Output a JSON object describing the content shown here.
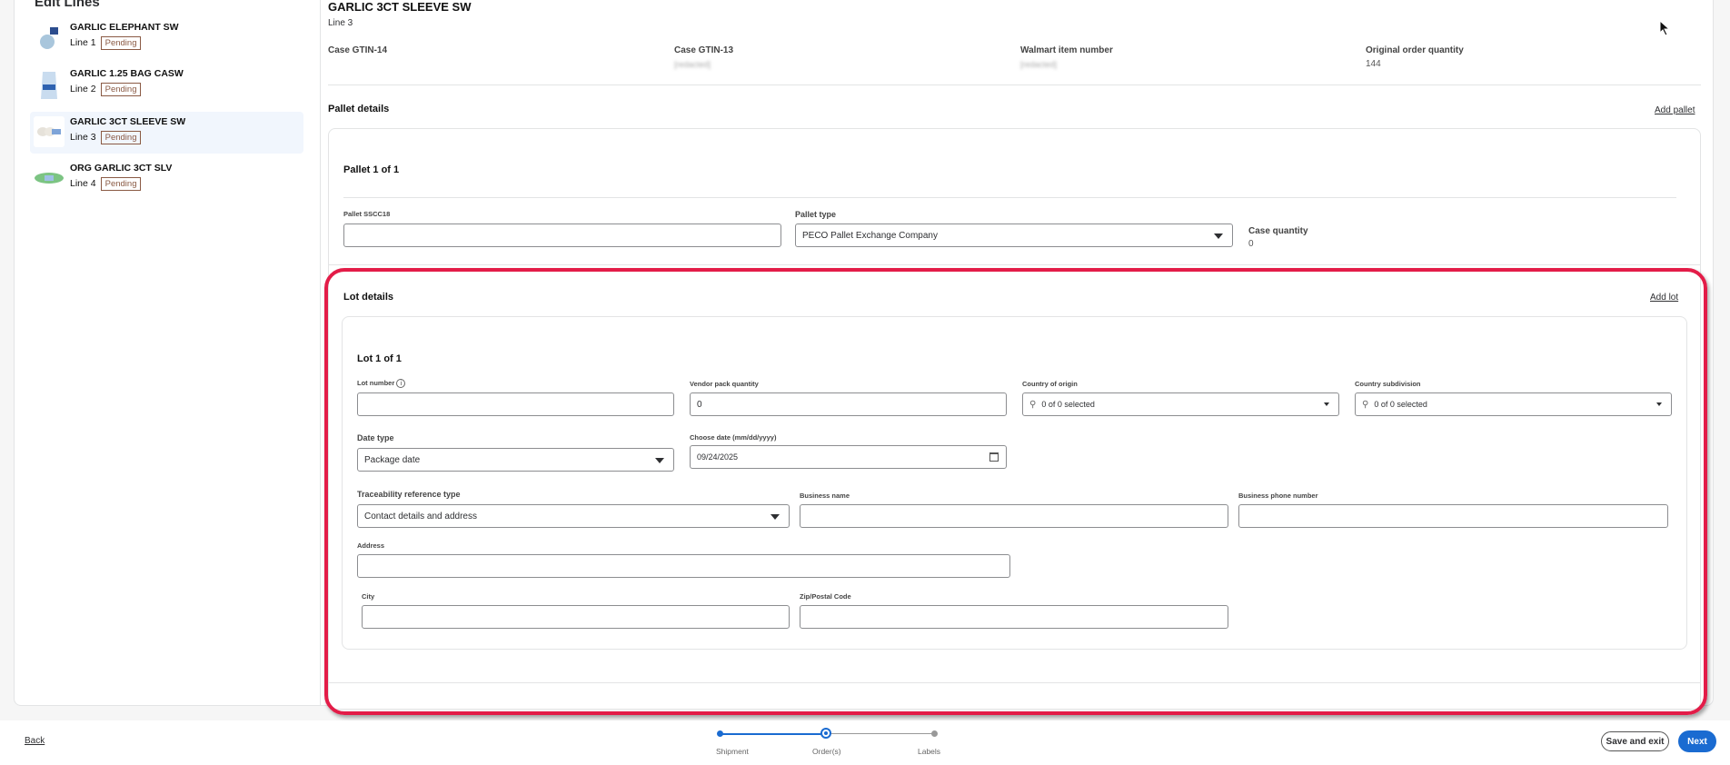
{
  "sidebar": {
    "title": "Edit Lines",
    "items": [
      {
        "name": "GARLIC ELEPHANT SW",
        "line": "Line 1",
        "status": "Pending"
      },
      {
        "name": "GARLIC 1.25 BAG CASW",
        "line": "Line 2",
        "status": "Pending"
      },
      {
        "name": "GARLIC 3CT SLEEVE SW",
        "line": "Line 3",
        "status": "Pending",
        "selected": true
      },
      {
        "name": "ORG GARLIC 3CT SLV",
        "line": "Line 4",
        "status": "Pending"
      }
    ]
  },
  "item": {
    "title": "GARLIC 3CT SLEEVE SW",
    "line": "Line 3",
    "fields": [
      {
        "label": "Case GTIN-14",
        "value": ""
      },
      {
        "label": "Case GTIN-13",
        "value": "[redacted]"
      },
      {
        "label": "Walmart item number",
        "value": "[redacted]"
      },
      {
        "label": "Original order quantity",
        "value": "144"
      }
    ]
  },
  "pallet": {
    "section_title": "Pallet details",
    "add_label": "Add pallet",
    "card_title": "Pallet 1 of 1",
    "sscc_label": "Pallet SSCC18",
    "sscc_value": "",
    "type_label": "Pallet type",
    "type_value": "PECO Pallet Exchange Company",
    "case_qty_label": "Case quantity",
    "case_qty_value": "0"
  },
  "lot": {
    "section_title": "Lot details",
    "add_label": "Add lot",
    "card_title": "Lot 1 of 1",
    "lot_number_label": "Lot number",
    "lot_number_value": "",
    "vendor_pack_label": "Vendor pack quantity",
    "vendor_pack_value": "0",
    "country_origin_label": "Country of origin",
    "country_origin_value": "0 of 0 selected",
    "country_subdivision_label": "Country subdivision",
    "country_subdivision_value": "0 of 0 selected",
    "date_type_label": "Date type",
    "date_type_value": "Package date",
    "choose_date_label": "Choose date (mm/dd/yyyy)",
    "choose_date_value": "09/24/2025",
    "trace_type_label": "Traceability reference type",
    "trace_type_value": "Contact details and address",
    "business_name_label": "Business name",
    "business_phone_label": "Business phone number",
    "address_label": "Address",
    "city_label": "City",
    "zip_label": "Zip/Postal Code"
  },
  "footer": {
    "back": "Back",
    "steps": [
      "Shipment",
      "Order(s)",
      "Labels"
    ],
    "current_step": 1,
    "save_exit": "Save and exit",
    "next": "Next"
  },
  "colors": {
    "accent": "#1a6bd1",
    "highlight": "#e31c48",
    "badge": "#8a5a44"
  }
}
